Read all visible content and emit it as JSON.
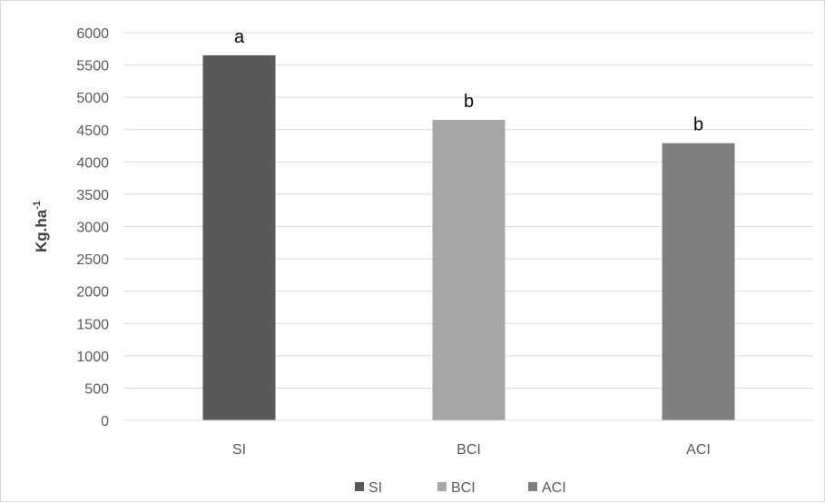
{
  "chart_data": {
    "type": "bar",
    "title": "",
    "xlabel": "",
    "ylabel": "Kg.ha",
    "ylabel_superscript": "-1",
    "categories": [
      "SI",
      "BCI",
      "ACI"
    ],
    "values": [
      5650,
      4650,
      4290
    ],
    "data_labels": [
      "a",
      "b",
      "b"
    ],
    "colors": [
      "#595959",
      "#a6a6a6",
      "#7f7f7f"
    ],
    "ylim": [
      0,
      6000
    ],
    "ytick_step": 500,
    "yticks": [
      "0",
      "500",
      "1000",
      "1500",
      "2000",
      "2500",
      "3000",
      "3500",
      "4000",
      "4500",
      "5000",
      "5500",
      "6000"
    ],
    "grid": true,
    "legend_position": "bottom",
    "legend": [
      {
        "name": "SI",
        "color": "#595959"
      },
      {
        "name": "BCI",
        "color": "#a6a6a6"
      },
      {
        "name": "ACI",
        "color": "#7f7f7f"
      }
    ]
  }
}
